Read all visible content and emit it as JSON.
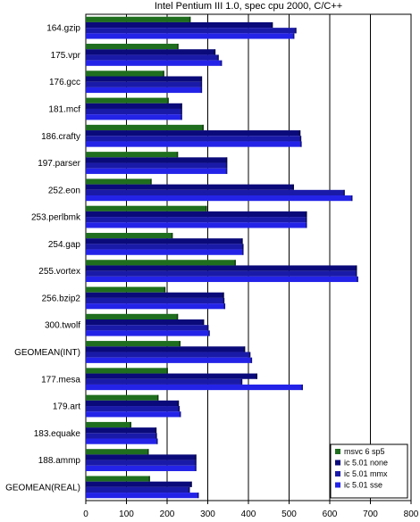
{
  "chart_data": {
    "type": "bar",
    "orientation": "horizontal",
    "title": "Intel Pentium III 1.0, spec cpu 2000, C/C++",
    "xlabel": "",
    "ylabel": "",
    "xlim": [
      0,
      800
    ],
    "xticks": [
      0,
      100,
      200,
      300,
      400,
      500,
      600,
      700,
      800
    ],
    "grid": "vertical",
    "legend_position": "bottom-right",
    "categories": [
      "164.gzip",
      "175.vpr",
      "176.gcc",
      "181.mcf",
      "186.crafty",
      "197.parser",
      "252.eon",
      "253.perlbmk",
      "254.gap",
      "255.vortex",
      "256.bzip2",
      "300.twolf",
      "GEOMEAN(INT)",
      "177.mesa",
      "179.art",
      "183.equake",
      "188.ammp",
      "GEOMEAN(REAL)"
    ],
    "series": [
      {
        "name": "msvc 6 sp5",
        "color": "#1f6e1f",
        "values": [
          258,
          228,
          193,
          204,
          290,
          227,
          162,
          298,
          214,
          369,
          196,
          227,
          233,
          202,
          179,
          112,
          155,
          158
        ]
      },
      {
        "name": "ic 5.01 none",
        "color": "#0a0a7a",
        "values": [
          460,
          319,
          286,
          237,
          528,
          348,
          512,
          544,
          386,
          667,
          340,
          291,
          392,
          422,
          229,
          174,
          272,
          261
        ]
      },
      {
        "name": "ic 5.01 mmx",
        "color": "#1a1aa8",
        "values": [
          518,
          327,
          286,
          237,
          530,
          348,
          637,
          544,
          388,
          667,
          341,
          302,
          405,
          385,
          231,
          175,
          272,
          256
        ]
      },
      {
        "name": "ic 5.01 sse",
        "color": "#2323e8",
        "values": [
          513,
          335,
          286,
          237,
          531,
          348,
          656,
          544,
          388,
          670,
          343,
          305,
          409,
          534,
          234,
          177,
          272,
          278
        ]
      }
    ]
  }
}
